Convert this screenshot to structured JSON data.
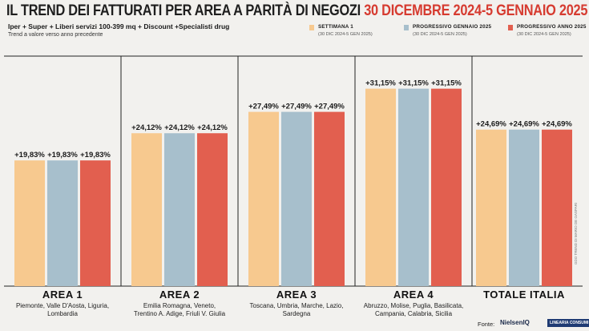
{
  "header": {
    "title": "IL TREND DEI FATTURATI PER AREA A PARITÀ DI NEGOZI",
    "title_date": "30 DICEMBRE 2024-5 GENNAIO 2025",
    "subtitle": "Iper + Super + Liberi servizi 100-399 mq + Discount +Specialisti drug",
    "note": "Trend a valore verso anno precedente"
  },
  "footer": {
    "source_label": "Fonte:",
    "logo1": "NielsenIQ",
    "logo2": "LINEARIA CONSUMI",
    "credit": "GDO TREND DI MARIO DE GASPARI"
  },
  "colors": {
    "settimana": "#f7c98f",
    "progressivo_gennaio": "#a7bfcc",
    "progressivo_anno": "#e25f4f",
    "title_accent": "#d63b30",
    "divider": "#222222"
  },
  "chart_data": {
    "type": "bar",
    "title": "IL TREND DEI FATTURATI PER AREA A PARITÀ DI NEGOZI 30 DICEMBRE 2024-5 GENNAIO 2025",
    "legend_position": "top-right",
    "series": [
      {
        "name": "SETTIMANA 1",
        "period": "(30 DIC 2024-5 GEN 2025)",
        "values": [
          19.83,
          24.12,
          27.49,
          31.15,
          24.69
        ],
        "labels": [
          "+19,83%",
          "+24,12%",
          "+27,49%",
          "+31,15%",
          "+24,69%"
        ]
      },
      {
        "name": "PROGRESSIVO GENNAIO 2025",
        "period": "(30 DIC 2024-5 GEN 2025)",
        "values": [
          19.83,
          24.12,
          27.49,
          31.15,
          24.69
        ],
        "labels": [
          "+19,83%",
          "+24,12%",
          "+27,49%",
          "+31,15%",
          "+24,69%"
        ]
      },
      {
        "name": "PROGRESSIVO ANNO 2025",
        "period": "(30 DIC 2024-5 GEN 2025)",
        "values": [
          19.83,
          24.12,
          27.49,
          31.15,
          24.69
        ],
        "labels": [
          "+19,83%",
          "+24,12%",
          "+27,49%",
          "+31,15%",
          "+24,69%"
        ]
      }
    ],
    "categories": [
      {
        "name": "AREA 1",
        "desc": [
          "Piemonte, Valle D'Aosta, Liguria,",
          "Lombardia"
        ]
      },
      {
        "name": "AREA 2",
        "desc": [
          "Emilia Romagna, Veneto,",
          "Trentino A. Adige, Friuli V. Giulia"
        ]
      },
      {
        "name": "AREA 3",
        "desc": [
          "Toscana, Umbria, Marche, Lazio,",
          "Sardegna"
        ]
      },
      {
        "name": "AREA 4",
        "desc": [
          "Abruzzo, Molise, Puglia, Basilicata,",
          "Campania, Calabria, Sicilia"
        ]
      },
      {
        "name": "TOTALE ITALIA",
        "desc": []
      }
    ],
    "ylim": [
      0,
      33
    ],
    "grid": false
  }
}
